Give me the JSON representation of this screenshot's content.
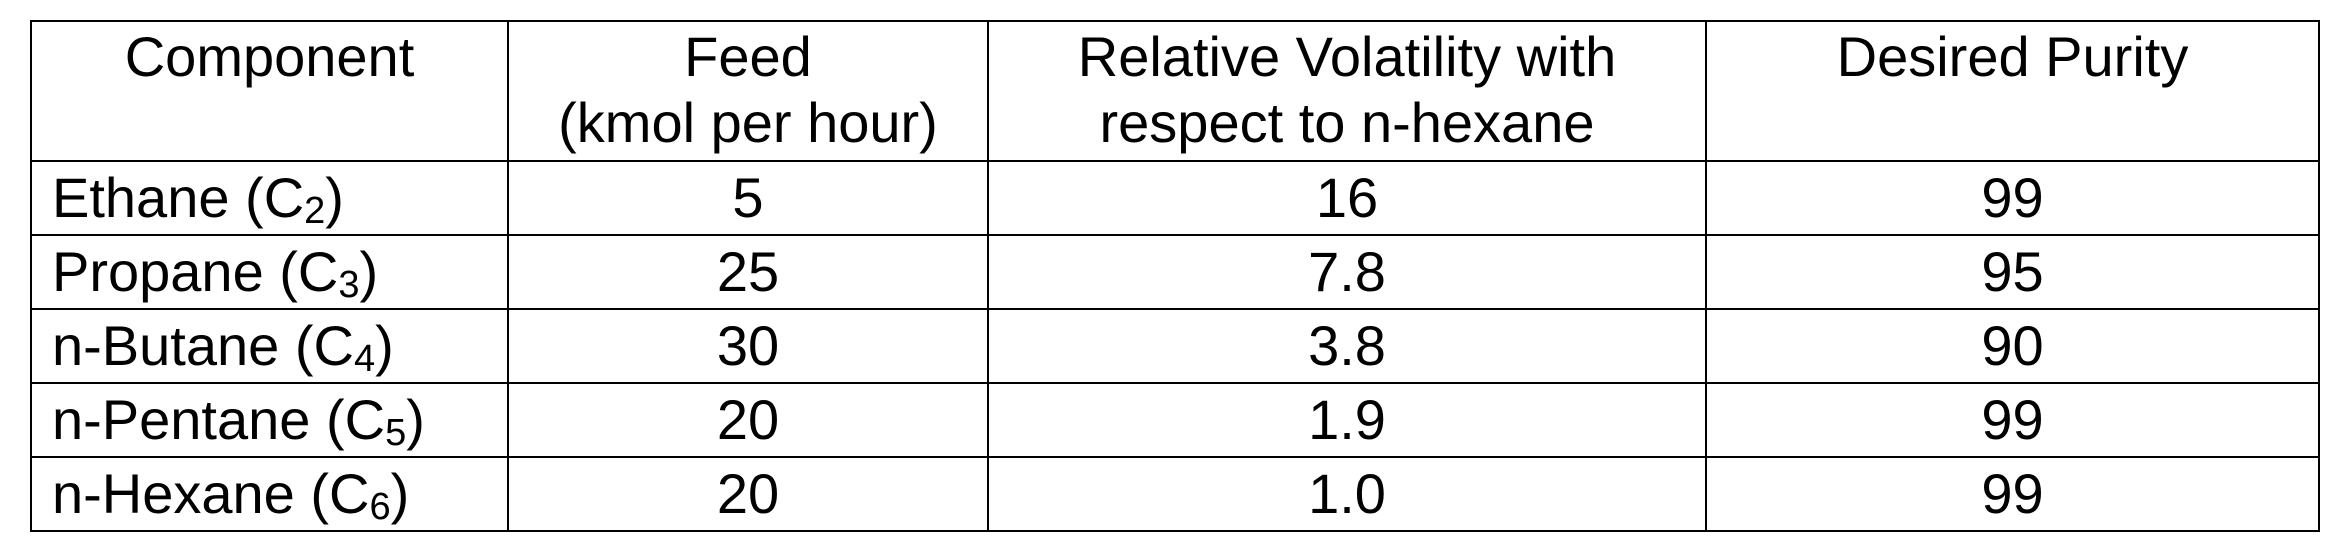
{
  "table": {
    "headers": [
      {
        "lines": [
          "Component"
        ]
      },
      {
        "lines": [
          "Feed",
          "(kmol per hour)"
        ]
      },
      {
        "lines": [
          "Relative Volatility with",
          "respect to n-hexane"
        ]
      },
      {
        "lines": [
          "Desired Purity"
        ]
      }
    ],
    "rows": [
      {
        "component_name": "Ethane (C",
        "component_sub": "2",
        "component_close": ")",
        "feed": "5",
        "volatility": "16",
        "purity": "99"
      },
      {
        "component_name": "Propane (C",
        "component_sub": "3",
        "component_close": ")",
        "feed": "25",
        "volatility": "7.8",
        "purity": "95"
      },
      {
        "component_name": "n-Butane (C",
        "component_sub": "4",
        "component_close": ")",
        "feed": "30",
        "volatility": "3.8",
        "purity": "90"
      },
      {
        "component_name": "n-Pentane (C",
        "component_sub": "5",
        "component_close": ")",
        "feed": "20",
        "volatility": "1.9",
        "purity": "99"
      },
      {
        "component_name": "n-Hexane (C",
        "component_sub": "6",
        "component_close": ")",
        "feed": "20",
        "volatility": "1.0",
        "purity": "99"
      }
    ]
  }
}
